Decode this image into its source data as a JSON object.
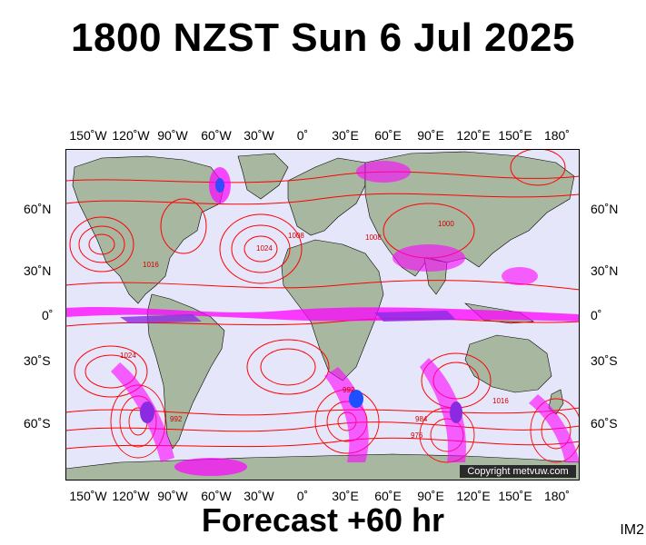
{
  "header": {
    "title": "1800 NZST Sun 6 Jul 2025"
  },
  "footer": {
    "forecast": "Forecast +60 hr",
    "image_code": "IM2"
  },
  "map": {
    "copyright": "Copyright metvuw.com",
    "longitude_labels": [
      "150˚W",
      "120˚W",
      "90˚W",
      "60˚W",
      "30˚W",
      "0˚",
      "30˚E",
      "60˚E",
      "90˚E",
      "120˚E",
      "150˚E",
      "180˚"
    ],
    "latitude_labels": [
      "60˚N",
      "30˚N",
      "0˚",
      "30˚S",
      "60˚S"
    ],
    "isobar_labels": [
      "1024",
      "1016",
      "1008",
      "1000",
      "992",
      "984",
      "976",
      "1016",
      "1024",
      "992",
      "1008"
    ],
    "colors": {
      "ocean": "#e6e6fa",
      "land": "#a8b8a0",
      "isobar": "#ff0000",
      "rain_light": "#ff00ff",
      "rain_medium": "#8a2be2",
      "rain_heavy": "#1e50ff"
    }
  }
}
